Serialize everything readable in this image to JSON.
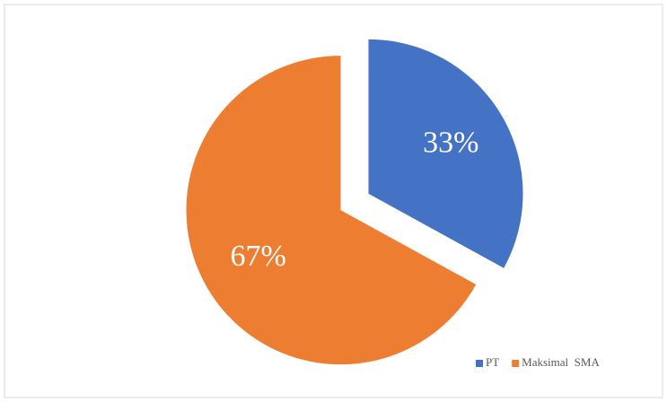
{
  "chart_data": {
    "type": "pie",
    "categories": [
      "PT",
      "Maksimal  SMA"
    ],
    "values": [
      33,
      67
    ],
    "value_labels": [
      "33%",
      "67%"
    ],
    "colors": [
      "#4472c4",
      "#ed7d31"
    ],
    "legend": "bottom-right"
  }
}
